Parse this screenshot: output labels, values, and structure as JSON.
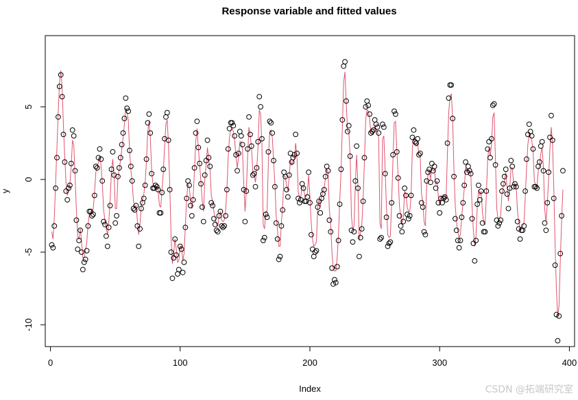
{
  "chart_data": {
    "type": "scatter",
    "title": "Response variable and fitted values",
    "xlabel": "Index",
    "ylabel": "y",
    "xlim": [
      -4,
      404
    ],
    "ylim": [
      -11.5,
      9.9
    ],
    "x_ticks": [
      0,
      100,
      200,
      300,
      400
    ],
    "y_ticks": [
      -10,
      -5,
      0,
      5
    ],
    "grid": false,
    "colors": {
      "points": "#000000",
      "fitted": "#DF536B"
    },
    "observed": [
      -4.5,
      -4.7,
      -3.2,
      -0.6,
      1.5,
      4.3,
      6.4,
      7.2,
      5.7,
      3.1,
      1.2,
      -0.8,
      -1.4,
      -0.6,
      -0.4,
      1.1,
      3.4,
      3.0,
      0.6,
      -2.8,
      -4.8,
      -4.2,
      -3.5,
      -5.0,
      -6.2,
      -5.7,
      -5.5,
      -4.9,
      -3.2,
      -2.2,
      -2.2,
      -2.5,
      -2.4,
      -1.1,
      0.9,
      0.8,
      1.5,
      2.1,
      1.4,
      -0.1,
      -2.9,
      -3.1,
      -3.9,
      -4.6,
      -3.3,
      -1.8,
      0.7,
      1.9,
      0.3,
      -3.0,
      -2.5,
      0.2,
      0.8,
      1.5,
      2.4,
      3.2,
      4.2,
      5.6,
      4.9,
      4.7,
      2.0,
      0.9,
      -0.1,
      -2.0,
      -2.1,
      -1.8,
      -3.2,
      -4.6,
      -3.4,
      -2.0,
      -1.6,
      -1.3,
      -0.4,
      1.4,
      3.9,
      4.5,
      3.2,
      0.4,
      -0.6,
      -0.6,
      -0.4,
      -0.5,
      -0.7,
      -2.3,
      -2.3,
      -0.9,
      0.7,
      2.8,
      4.3,
      4.6,
      2.7,
      -0.7,
      -5.0,
      -6.8,
      -5.4,
      -4.1,
      -5.2,
      -6.5,
      -6.2,
      -4.6,
      -4.8,
      -6.4,
      -5.7,
      -3.3,
      -1.3,
      -0.1,
      -0.4,
      -1.8,
      -2.5,
      -1.4,
      0.8,
      3.2,
      4.0,
      2.2,
      1.1,
      -0.3,
      -1.9,
      -2.9,
      0.3,
      1.3,
      2.7,
      1.5,
      0.9,
      -1.6,
      -1.8,
      -2.7,
      -3.1,
      -3.5,
      -3.6,
      -2.5,
      -2.2,
      -3.2,
      -3.3,
      -3.2,
      -2.5,
      -0.7,
      2.1,
      3.5,
      3.9,
      3.9,
      3.7,
      3.0,
      1.7,
      0.6,
      1.8,
      3.3,
      3.0,
      2.4,
      -0.7,
      -2.9,
      -0.8,
      2.1,
      4.3,
      3.1,
      2.3,
      0.3,
      0.4,
      -0.5,
      0.8,
      2.6,
      5.7,
      5.0,
      2.8,
      -4.2,
      -4.0,
      -2.4,
      -2.6,
      1.9,
      4.0,
      3.9,
      3.2,
      1.3,
      -0.5,
      -3.0,
      -4.1,
      -5.5,
      -5.3,
      -3.2,
      -2.1,
      0.5,
      0.2,
      -0.7,
      -1.2,
      0.3,
      1.8,
      1.2,
      1.5,
      1.7,
      3.1,
      1.8,
      -1.3,
      -1.6,
      -1.4,
      -0.3,
      -0.6,
      -1.5,
      -1.5,
      -1.2,
      0.5,
      -1.6,
      -3.8,
      -4.8,
      -5.3,
      -5.0,
      -4.9,
      -1.9,
      -1.5,
      -2.3,
      -1.3,
      -1.0,
      -0.7,
      0.2,
      0.9,
      0.6,
      -2.8,
      -3.6,
      -6.1,
      -7.2,
      -6.9,
      -7.1,
      -6.0,
      -4.2,
      -1.7,
      0.7,
      4.1,
      7.8,
      8.1,
      5.4,
      3.3,
      3.7,
      1.6,
      -3.5,
      -4.3,
      -3.6,
      -0.1,
      2.3,
      -0.6,
      -5.3,
      -4.0,
      -3.4,
      -1.5,
      1.5,
      5.0,
      5.4,
      5.1,
      4.5,
      3.2,
      3.3,
      3.4,
      4.1,
      3.8,
      3.6,
      3.2,
      -4.1,
      -4.0,
      3.8,
      3.6,
      0.4,
      -2.6,
      -4.6,
      -4.4,
      -4.3,
      -1.6,
      1.7,
      4.7,
      4.5,
      1.9,
      0.1,
      -2.5,
      -3.2,
      -3.6,
      -2.9,
      -0.6,
      -1.1,
      -2.4,
      -2.7,
      -2.5,
      -1.1,
      2.9,
      3.4,
      2.6,
      2.5,
      2.8,
      1.7,
      1.8,
      -1.6,
      -1.9,
      -3.6,
      -3.8,
      -0.1,
      0.5,
      0.7,
      -0.2,
      1.1,
      0.6,
      0.9,
      -0.6,
      -0.1,
      -1.6,
      -2.3,
      -1.3,
      -1.6,
      -1.3,
      -1.2,
      -1.4,
      2.5,
      5.6,
      6.5,
      6.5,
      4.2,
      0.2,
      -2.7,
      -3.5,
      -4.2,
      -4.7,
      -4.2,
      -2.6,
      -1.6,
      -0.4,
      1.2,
      0.5,
      0.9,
      0.6,
      0.4,
      -2.7,
      -4.4,
      -5.6,
      -4.2,
      -1.7,
      -0.4,
      -1.4,
      -0.8,
      -3.0,
      -3.6,
      -3.6,
      -0.8,
      2.1,
      2.6,
      1.5,
      2.8,
      5.1,
      5.2,
      1.0,
      -2.8,
      -3.2,
      -3.0,
      -2.8,
      -0.8,
      -0.3,
      0.2,
      0.7,
      -1.0,
      -2.0,
      -0.6,
      1.3,
      0.9,
      -0.5,
      -0.3,
      -0.5,
      -2.9,
      -3.4,
      -4.1,
      -3.5,
      -3.5,
      -3.2,
      -0.8,
      1.4,
      3.1,
      3.8,
      3.3,
      3.0,
      2.1,
      -0.5,
      -0.5,
      -0.6,
      0.9,
      1.2,
      2.3,
      2.6,
      0.6,
      -3.0,
      -3.5,
      -1.6,
      0.5,
      2.9,
      4.4,
      2.7,
      -1.3,
      -5.9,
      -9.3,
      -11.1,
      -9.4,
      -5.1,
      -2.5,
      0.6
    ],
    "fitted": [
      -3.6,
      -4.1,
      -2.6,
      -0.2,
      2.2,
      4.6,
      6.7,
      7.5,
      6.3,
      3.7,
      1.6,
      -0.2,
      -1.1,
      -0.8,
      -0.3,
      0.9,
      2.7,
      2.4,
      0.2,
      -2.1,
      -3.9,
      -4.1,
      -3.4,
      -4.3,
      -5.4,
      -5.4,
      -4.9,
      -4.3,
      -3.1,
      -2.4,
      -2.2,
      -2.3,
      -2.0,
      -0.9,
      0.5,
      0.8,
      1.2,
      1.6,
      1.0,
      -0.3,
      -2.1,
      -2.8,
      -3.4,
      -3.8,
      -2.9,
      -1.4,
      0.5,
      1.4,
      0.4,
      -2.0,
      -2.0,
      0.1,
      0.7,
      1.3,
      2.1,
      2.9,
      3.8,
      4.9,
      4.6,
      4.1,
      2.0,
      0.7,
      -0.2,
      -1.5,
      -1.9,
      -1.8,
      -2.8,
      -3.8,
      -3.1,
      -1.9,
      -1.4,
      -1.0,
      -0.2,
      1.2,
      3.3,
      4.0,
      2.9,
      0.6,
      -0.3,
      -0.5,
      -0.4,
      -0.5,
      -0.7,
      -1.8,
      -1.9,
      -0.8,
      0.5,
      2.3,
      3.8,
      4.1,
      2.4,
      -0.5,
      -4.0,
      -5.8,
      -5.1,
      -4.1,
      -4.8,
      -5.7,
      -5.6,
      -4.6,
      -4.6,
      -5.6,
      -5.1,
      -3.2,
      -1.3,
      -0.3,
      -0.5,
      -1.5,
      -2.0,
      -1.2,
      0.6,
      2.6,
      3.5,
      2.2,
      1.0,
      -0.2,
      -1.5,
      -2.2,
      0.0,
      1.0,
      2.2,
      1.4,
      0.7,
      -1.1,
      -1.5,
      -2.2,
      -2.7,
      -3.1,
      -3.2,
      -2.5,
      -2.2,
      -2.8,
      -2.9,
      -2.8,
      -2.2,
      -0.7,
      1.5,
      2.9,
      3.4,
      3.5,
      3.3,
      2.7,
      1.6,
      0.8,
      1.5,
      2.6,
      2.6,
      2.1,
      -0.3,
      -2.2,
      -0.8,
      1.6,
      3.6,
      3.0,
      2.2,
      0.5,
      0.4,
      -0.2,
      0.7,
      2.2,
      4.8,
      4.5,
      2.4,
      -3.1,
      -3.4,
      -2.2,
      -2.2,
      1.3,
      3.3,
      3.4,
      2.9,
      1.3,
      -0.3,
      -2.5,
      -3.5,
      -4.6,
      -4.6,
      -3.0,
      -1.8,
      0.3,
      0.2,
      -0.4,
      -0.8,
      0.2,
      1.3,
      1.0,
      1.3,
      1.4,
      2.5,
      1.6,
      -0.8,
      -1.3,
      -1.2,
      -0.4,
      -0.5,
      -1.1,
      -1.2,
      -1.0,
      0.3,
      -1.2,
      -3.0,
      -4.1,
      -4.6,
      -4.5,
      -4.3,
      -2.0,
      -1.4,
      -1.9,
      -1.2,
      -0.9,
      -0.6,
      0.1,
      0.7,
      0.5,
      -2.1,
      -3.1,
      -5.0,
      -6.2,
      -6.3,
      -6.3,
      -5.4,
      -3.8,
      -1.5,
      0.6,
      3.6,
      6.7,
      7.4,
      5.3,
      3.3,
      3.3,
      1.6,
      -2.5,
      -3.5,
      -3.2,
      -0.4,
      1.7,
      -0.3,
      -4.2,
      -3.7,
      -3.1,
      -1.4,
      1.2,
      4.1,
      4.8,
      4.7,
      4.2,
      3.2,
      3.1,
      3.1,
      3.6,
      3.5,
      3.3,
      2.9,
      -3.0,
      -3.4,
      2.8,
      3.0,
      0.6,
      -1.9,
      -3.8,
      -4.0,
      -3.9,
      -1.6,
      1.3,
      3.9,
      4.0,
      2.0,
      0.3,
      -1.8,
      -2.6,
      -3.0,
      -2.6,
      -0.8,
      -1.0,
      -1.9,
      -2.2,
      -2.2,
      -1.1,
      2.2,
      2.9,
      2.4,
      2.3,
      2.5,
      1.7,
      1.6,
      -1.0,
      -1.5,
      -2.9,
      -3.2,
      -0.4,
      0.3,
      0.6,
      0.0,
      0.8,
      0.6,
      0.7,
      -0.3,
      -0.1,
      -1.2,
      -1.8,
      -1.2,
      -1.3,
      -1.2,
      -1.1,
      -1.2,
      1.8,
      4.6,
      5.7,
      5.9,
      4.2,
      0.8,
      -1.8,
      -2.9,
      -3.6,
      -4.0,
      -3.8,
      -2.6,
      -1.6,
      -0.6,
      0.8,
      0.5,
      0.7,
      0.6,
      0.4,
      -1.9,
      -3.5,
      -4.6,
      -3.9,
      -1.9,
      -0.7,
      -1.1,
      -0.8,
      -2.3,
      -3.0,
      -3.1,
      -1.1,
      1.4,
      2.2,
      1.6,
      2.4,
      4.3,
      4.6,
      1.4,
      -2.0,
      -2.7,
      -2.7,
      -2.5,
      -1.0,
      -0.5,
      0.0,
      0.5,
      -0.6,
      -1.5,
      -0.7,
      0.8,
      0.8,
      -0.2,
      -0.3,
      -0.5,
      -2.2,
      -2.9,
      -3.5,
      -3.3,
      -3.2,
      -3.0,
      -1.2,
      0.8,
      2.4,
      3.2,
      3.0,
      2.7,
      2.0,
      -0.1,
      -0.4,
      -0.5,
      0.6,
      1.0,
      1.8,
      2.2,
      0.8,
      -2.1,
      -2.9,
      -1.7,
      0.1,
      2.1,
      3.6,
      2.5,
      -0.6,
      -4.5,
      -7.6,
      -9.4,
      -8.7,
      -5.6,
      -2.9,
      -0.7
    ]
  },
  "watermark": "CSDN @拓端研究室"
}
